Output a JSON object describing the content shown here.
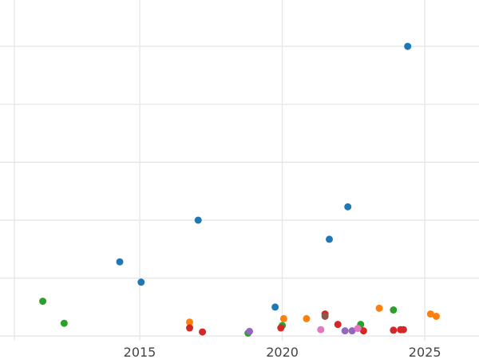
{
  "chart_data": {
    "type": "scatter",
    "title": "",
    "xlabel": "",
    "ylabel": "",
    "xlim": [
      2010.1,
      2026.9
    ],
    "ylim": [
      -0.08,
      5.8
    ],
    "x_ticks": [
      2015,
      2020,
      2025
    ],
    "x_tick_labels": [
      "2015",
      "2020",
      "2025"
    ],
    "y_grid": [
      0,
      1,
      2,
      3,
      4,
      5
    ],
    "grid": true,
    "colors": {
      "blue": "#1f77b4",
      "orange": "#ff7f0e",
      "green": "#2ca02c",
      "red": "#d62728",
      "purple": "#9467bd",
      "brown": "#8c564b",
      "pink": "#e377c2"
    },
    "series": [
      {
        "color": "blue",
        "points": [
          [
            2014.3,
            1.28
          ],
          [
            2015.05,
            0.93
          ],
          [
            2017.05,
            2.0
          ],
          [
            2019.75,
            0.5
          ],
          [
            2021.65,
            1.67
          ],
          [
            2022.3,
            2.23
          ],
          [
            2024.4,
            5.0
          ]
        ]
      },
      {
        "color": "orange",
        "points": [
          [
            2016.75,
            0.24
          ],
          [
            2020.05,
            0.3
          ],
          [
            2020.85,
            0.3
          ],
          [
            2023.4,
            0.48
          ],
          [
            2025.2,
            0.38
          ],
          [
            2025.4,
            0.34
          ]
        ]
      },
      {
        "color": "green",
        "points": [
          [
            2011.6,
            0.6
          ],
          [
            2012.35,
            0.22
          ],
          [
            2018.8,
            0.05
          ],
          [
            2020.0,
            0.18
          ],
          [
            2022.75,
            0.2
          ],
          [
            2023.9,
            0.45
          ]
        ]
      },
      {
        "color": "red",
        "points": [
          [
            2016.75,
            0.14
          ],
          [
            2017.2,
            0.07
          ],
          [
            2019.95,
            0.14
          ],
          [
            2021.5,
            0.38
          ],
          [
            2021.95,
            0.2
          ],
          [
            2022.85,
            0.09
          ],
          [
            2023.9,
            0.1
          ],
          [
            2024.15,
            0.11
          ],
          [
            2024.25,
            0.11
          ]
        ]
      },
      {
        "color": "purple",
        "points": [
          [
            2018.85,
            0.08
          ],
          [
            2022.2,
            0.09
          ],
          [
            2022.45,
            0.09
          ]
        ]
      },
      {
        "color": "brown",
        "points": [
          [
            2021.5,
            0.34
          ]
        ]
      },
      {
        "color": "pink",
        "points": [
          [
            2021.35,
            0.11
          ],
          [
            2022.65,
            0.13
          ]
        ]
      }
    ]
  }
}
